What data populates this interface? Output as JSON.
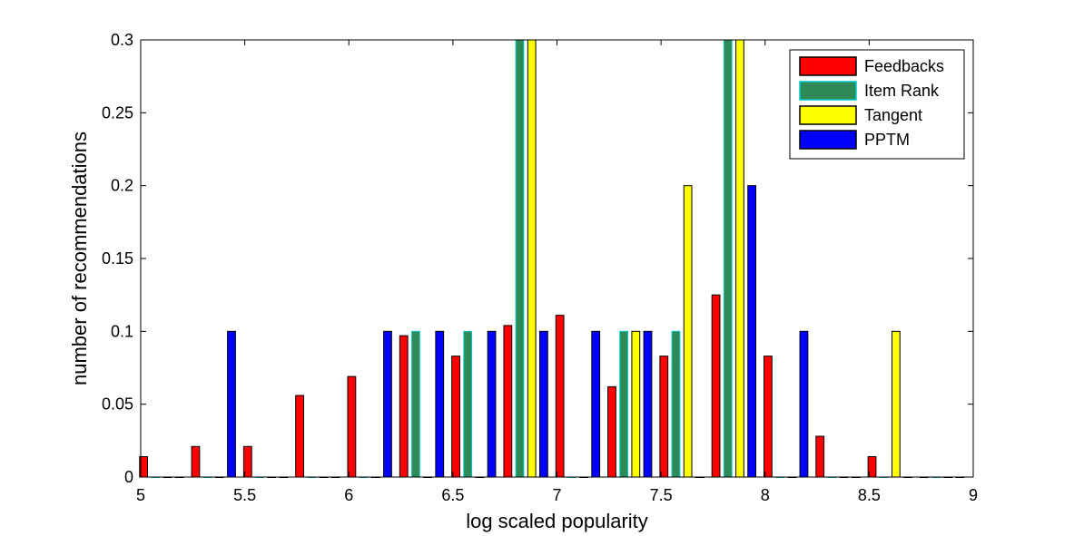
{
  "chart_data": {
    "type": "bar",
    "xlabel": "log scaled popularity",
    "ylabel": "number of recommendations",
    "xlim": [
      5,
      9
    ],
    "ylim": [
      0,
      0.3
    ],
    "xticks": [
      5,
      5.5,
      6,
      6.5,
      7,
      7.5,
      8,
      8.5,
      9
    ],
    "xtick_labels": [
      "5",
      "5.5",
      "6",
      "6.5",
      "7",
      "7.5",
      "8",
      "8.5",
      "9"
    ],
    "yticks": [
      0,
      0.05,
      0.1,
      0.15,
      0.2,
      0.25,
      0.3
    ],
    "ytick_labels": [
      "0",
      "0.05",
      "0.1",
      "0.15",
      "0.2",
      "0.25",
      "0.3"
    ],
    "grid": false,
    "legend_position": "top-right",
    "bin_centers": [
      5.1,
      5.35,
      5.6,
      5.85,
      6.1,
      6.35,
      6.6,
      6.85,
      7.1,
      7.35,
      7.6,
      7.85,
      8.1,
      8.35,
      8.6,
      8.85
    ],
    "series": [
      {
        "name": "Feedbacks",
        "color": "#ff0000",
        "values": [
          0.014,
          0.021,
          0.021,
          0.056,
          0.069,
          0.097,
          0.083,
          0.104,
          0.111,
          0.062,
          0.083,
          0.125,
          0.083,
          0.028,
          0.014,
          0
        ]
      },
      {
        "name": "Item Rank",
        "color": "#2e8b57",
        "edge": "#00c8c8",
        "values": [
          0,
          0,
          0,
          0,
          0,
          0.1,
          0.1,
          0.3,
          0,
          0.1,
          0.1,
          0.3,
          0,
          0,
          0,
          0
        ]
      },
      {
        "name": "Tangent",
        "color": "#ffff00",
        "values": [
          0,
          0,
          0,
          0,
          0,
          0,
          0,
          0.3,
          0,
          0.1,
          0.2,
          0.3,
          0,
          0,
          0.1,
          0
        ]
      },
      {
        "name": "PPTM",
        "color": "#0000ff",
        "values": [
          0,
          0.1,
          0,
          0,
          0.1,
          0.1,
          0.1,
          0.1,
          0.1,
          0.1,
          0,
          0.2,
          0.1,
          0,
          0,
          0
        ]
      }
    ]
  }
}
